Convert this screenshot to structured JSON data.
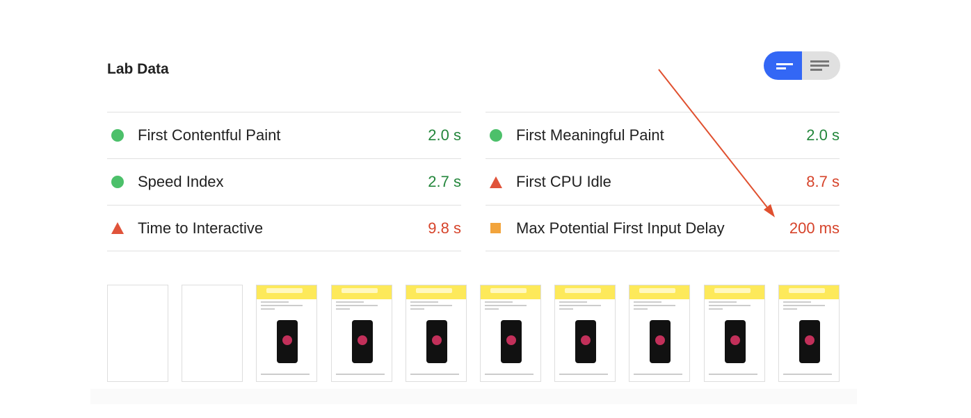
{
  "section_title": "Lab Data",
  "view_toggle": {
    "options": [
      "summary-view",
      "detailed-view"
    ],
    "selected": "summary-view",
    "accent": "#3367f5"
  },
  "metrics_left": [
    {
      "label": "First Contentful Paint",
      "value": "2.0 s",
      "status": "pass"
    },
    {
      "label": "Speed Index",
      "value": "2.7 s",
      "status": "pass"
    },
    {
      "label": "Time to Interactive",
      "value": "9.8 s",
      "status": "fail"
    }
  ],
  "metrics_right": [
    {
      "label": "First Meaningful Paint",
      "value": "2.0 s",
      "status": "pass"
    },
    {
      "label": "First CPU Idle",
      "value": "8.7 s",
      "status": "fail"
    },
    {
      "label": "Max Potential First Input Delay",
      "value": "200 ms",
      "status": "average"
    }
  ],
  "colors": {
    "pass": "#23863b",
    "fail": "#d6432a",
    "average": "#f2a43c",
    "annotation_arrow": "#e0502f"
  },
  "filmstrip": {
    "frames": 10,
    "blank_frames": 2
  }
}
